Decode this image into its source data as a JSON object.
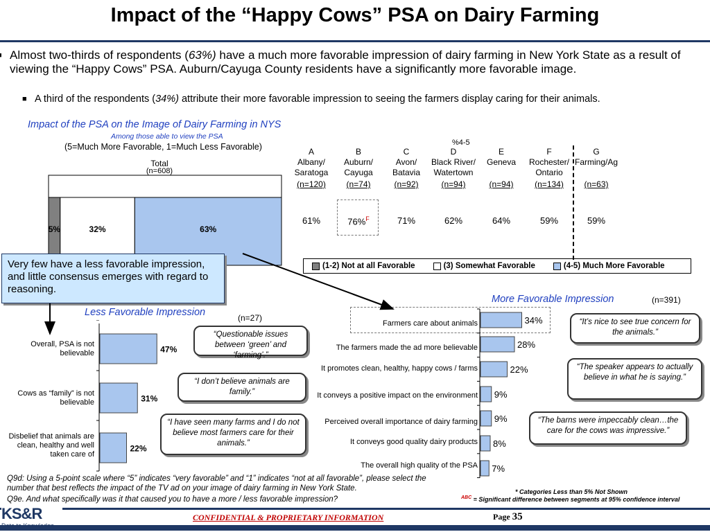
{
  "title": "Impact of the “Happy Cows” PSA on Dairy Farming",
  "bullets": {
    "main_pre": "Almost two-thirds of respondents (",
    "main_pct": "63%)",
    "main_post": " have a much more favorable impression of dairy farming in New York State as a result of viewing the “Happy Cows” PSA.  Auburn/Cayuga County residents have a significantly more favorable image.",
    "sub_pre": "A third of the respondents (",
    "sub_pct": "34%)",
    "sub_post": " attribute their more favorable impression to seeing the farmers display caring for their animals."
  },
  "section_title": "Impact of the PSA on the Image of Dairy Farming in NYS",
  "section_subtitle": "Among those able to view the PSA",
  "scale_note": "(5=Much More  Favorable, 1=Much Less Favorable)",
  "pct45_label": "%4-5",
  "total_label": "Total",
  "total_n": "(n=608)",
  "callout_blue": "Very few have a less favorable impression, and little consensus emerges with regard to reasoning.",
  "legend": [
    {
      "label": "(1-2) Not at all Favorable",
      "color": "#808080"
    },
    {
      "label": "(3) Somewhat Favorable",
      "color": "#ffffff"
    },
    {
      "label": "(4-5) Much More Favorable",
      "color": "#a9c6ee"
    }
  ],
  "segments": [
    {
      "letter": "A",
      "name1": "Albany/",
      "name2": "Saratoga",
      "n": "(n=120)",
      "pct": "61%",
      "sup": ""
    },
    {
      "letter": "B",
      "name1": "Auburn/",
      "name2": "Cayuga",
      "n": "(n=74)",
      "pct": "76%",
      "sup": "F"
    },
    {
      "letter": "C",
      "name1": "Avon/",
      "name2": "Batavia",
      "n": "(n=92)",
      "pct": "71%",
      "sup": ""
    },
    {
      "letter": "D",
      "name1": "Black River/",
      "name2": "Watertown",
      "n": "(n=94)",
      "pct": "62%",
      "sup": ""
    },
    {
      "letter": "E",
      "name1": "Geneva",
      "name2": "",
      "n": "(n=94)",
      "pct": "64%",
      "sup": ""
    },
    {
      "letter": "F",
      "name1": "Rochester/",
      "name2": "Ontario",
      "n": "(n=134)",
      "pct": "59%",
      "sup": ""
    },
    {
      "letter": "G",
      "name1": "Farming/Ag",
      "name2": "",
      "n": "(n=63)",
      "pct": "59%",
      "sup": ""
    }
  ],
  "less_title": "Less Favorable Impression",
  "less_n": "(n=27)",
  "more_title": "More Favorable Impression",
  "more_n": "(n=391)",
  "less_quotes": [
    "“Questionable issues between ‘green’ and ‘farming’.”",
    "“I don’t believe animals are family.”",
    "“I have seen many farms and I do not believe most farmers care for their animals.”"
  ],
  "more_quotes": [
    "“It’s nice to see true concern for the animals.”",
    "“The speaker appears to actually believe in what he is saying.”",
    "“The barns were impeccably clean…the care for the cows was impressive.”"
  ],
  "footnote_q9d": "Q9d:  Using a 5-point scale where “5” indicates “very favorable” and “1” indicates “not at all favorable”, please select the number that best reflects the impact of the TV ad on your image of dairy farming in New York State.",
  "footnote_q9e": "Q9e.  And what specifically was it that caused you to have a more / less favorable impression?",
  "footnote_star": "* Categories Less than 5% Not Shown",
  "footnote_abc_sup": "ABC",
  "footnote_abc": " = Significant difference between segments at 95% confidence interval",
  "footer_conf": "CONFIDENTIAL & PROPRIETARY INFORMATION",
  "footer_page_label": "Page ",
  "footer_page_num": "35",
  "logo_text": "KS&R",
  "logo_tag": "Data to Knowledge",
  "colors": {
    "navy": "#1f3864",
    "bar_blue": "#a9c6ee",
    "bar_gray": "#808080",
    "link_blue": "#1f3fbf"
  },
  "chart_data": [
    {
      "type": "bar",
      "orientation": "stacked-vertical",
      "categories": [
        "Total"
      ],
      "series": [
        {
          "name": "(1-2) Not at all Favorable",
          "values": [
            5
          ]
        },
        {
          "name": "(3) Somewhat Favorable",
          "values": [
            32
          ]
        },
        {
          "name": "(4-5) Much More Favorable",
          "values": [
            63
          ]
        }
      ],
      "data_labels": [
        "5%",
        "32%",
        "63%"
      ]
    },
    {
      "type": "bar",
      "orientation": "horizontal",
      "title": "Less Favorable Impression",
      "categories": [
        "Overall, PSA  is not believable",
        "Cows as “family” is not believable",
        "Disbelief that animals are clean, healthy and well taken care of"
      ],
      "values": [
        47,
        31,
        22
      ],
      "data_labels": [
        "47%",
        "31%",
        "22%"
      ]
    },
    {
      "type": "bar",
      "orientation": "horizontal",
      "title": "More Favorable Impression",
      "categories": [
        "Farmers care about animals",
        "The farmers made the ad more believable",
        "It  promotes clean, healthy, happy cows / farms",
        "It conveys a positive impact on the environment",
        "Perceived overall importance of dairy farming",
        "It conveys good quality dairy products",
        "The overall high quality of the PSA"
      ],
      "values": [
        34,
        28,
        22,
        9,
        9,
        8,
        7
      ],
      "data_labels": [
        "34%",
        "28%",
        "22%",
        "9%",
        "9%",
        "8%",
        "7%"
      ]
    }
  ]
}
